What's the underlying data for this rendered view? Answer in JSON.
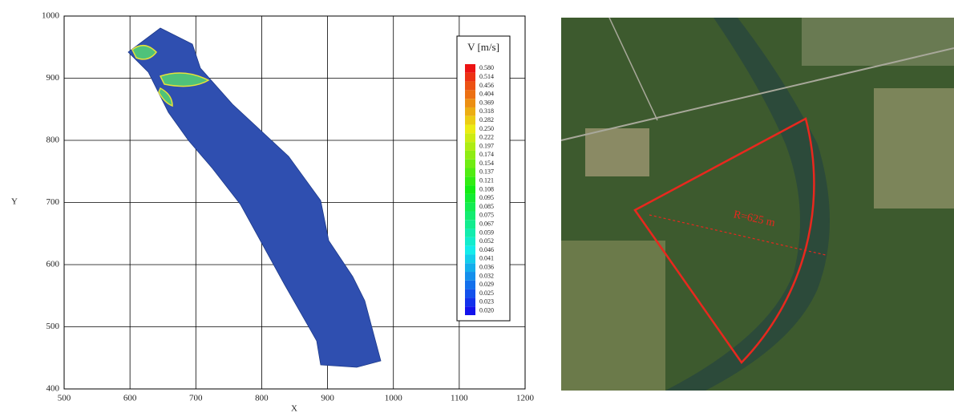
{
  "chart_data": {
    "type": "contour",
    "x_label": "X",
    "y_label": "Y",
    "xlim": [
      500,
      1200
    ],
    "ylim": [
      400,
      1000
    ],
    "xticks": [
      500,
      600,
      700,
      800,
      900,
      1000,
      1100,
      1200
    ],
    "yticks": [
      400,
      500,
      600,
      700,
      800,
      900,
      1000
    ],
    "grid": true,
    "legend_title": "V [m/s]",
    "legend_levels": [
      {
        "value": 0.58,
        "label": "0.580"
      },
      0.514,
      0.456,
      0.404,
      0.369,
      0.318,
      0.282,
      {
        "value": 0.25,
        "label": "0.250"
      },
      0.222,
      0.197,
      0.174,
      0.154,
      0.137,
      0.121,
      0.108,
      0.095,
      0.085,
      0.075,
      0.067,
      0.059,
      0.052,
      0.046,
      0.041,
      0.036,
      0.032,
      0.029,
      0.025,
      0.023,
      {
        "value": 0.02,
        "label": "0.020"
      }
    ]
  },
  "photo": {
    "annotation": "R=625 m"
  }
}
